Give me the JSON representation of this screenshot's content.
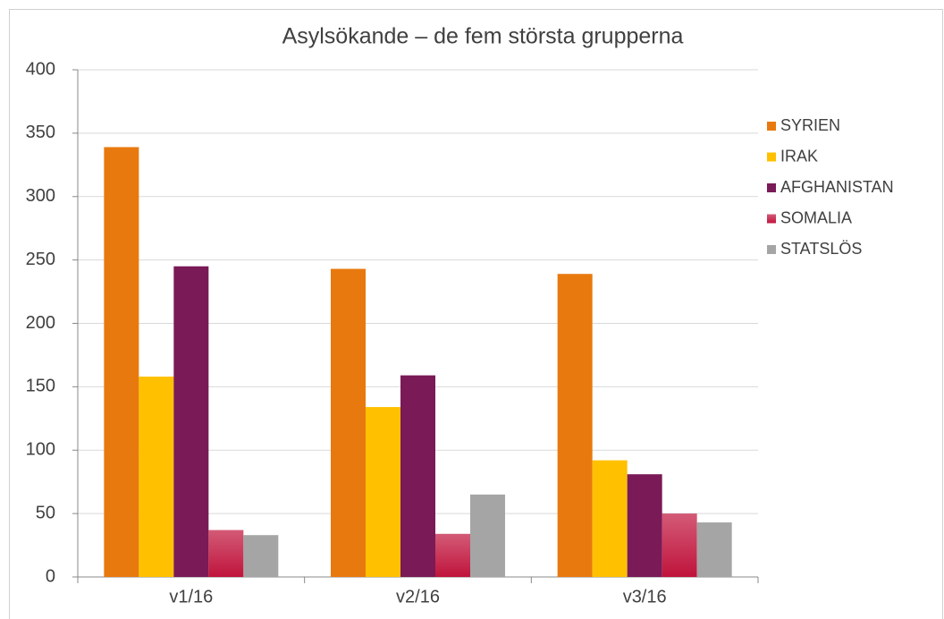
{
  "chart_data": {
    "type": "bar",
    "title": "Asylsökande – de fem största grupperna",
    "categories": [
      "v1/16",
      "v2/16",
      "v3/16"
    ],
    "series": [
      {
        "name": "SYRIEN",
        "color": "#e8790f",
        "values": [
          339,
          243,
          239
        ]
      },
      {
        "name": "IRAK",
        "color": "#ffc000",
        "values": [
          158,
          134,
          92
        ]
      },
      {
        "name": "AFGHANISTAN",
        "color": "#7a1a56",
        "values": [
          245,
          159,
          81
        ]
      },
      {
        "name": "SOMALIA",
        "color": "#c0143c",
        "values": [
          37,
          34,
          50
        ]
      },
      {
        "name": "STATSLÖS",
        "color": "#a5a5a5",
        "values": [
          33,
          65,
          43
        ]
      }
    ],
    "ylim": [
      0,
      400
    ],
    "yticks": [
      0,
      50,
      100,
      150,
      200,
      250,
      300,
      350,
      400
    ],
    "grid": true,
    "legend": "right"
  }
}
